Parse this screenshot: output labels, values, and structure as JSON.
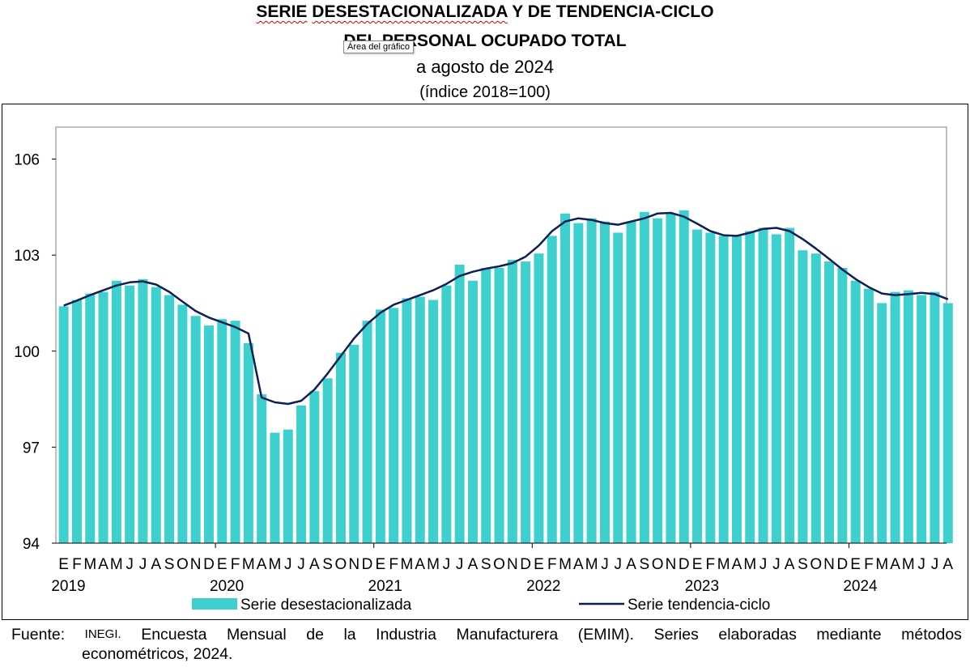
{
  "header": {
    "title_word1": "SERIE",
    "title_word2": "DESESTACIONALIZADA",
    "title_rest": "Y DE TENDENCIA-CICLO",
    "title_line2": "DEL PERSONAL OCUPADO TOTAL",
    "subtitle": "a agosto de 2024",
    "unit": "(índice 2018=100)"
  },
  "tooltip": "Área del gráfico",
  "source": {
    "words": [
      "Fuente:",
      "INEGI.",
      "Encuesta",
      "Mensual",
      "de",
      "la",
      "Industria",
      "Manufacturera",
      "(EMIM).",
      "Series",
      "elaboradas",
      "mediante",
      "métodos"
    ],
    "line2": "econométricos, 2024."
  },
  "colors": {
    "bars": "#3ECFCF",
    "trend": "#0E1F54",
    "axis": "#7F7F7F"
  },
  "chart_data": {
    "type": "bar",
    "ylim": [
      94,
      107
    ],
    "yticks": [
      94,
      97,
      100,
      103,
      106
    ],
    "grid": false,
    "legend_position": "bottom",
    "month_labels": [
      "E",
      "F",
      "M",
      "A",
      "M",
      "J",
      "J",
      "A",
      "S",
      "O",
      "N",
      "D"
    ],
    "years": [
      "2019",
      "2020",
      "2021",
      "2022",
      "2023",
      "2024"
    ],
    "series": [
      {
        "name": "Serie desestacionalizada",
        "type": "bar",
        "values": [
          101.4,
          101.6,
          101.8,
          101.85,
          102.2,
          102.05,
          102.25,
          102.0,
          101.75,
          101.45,
          101.1,
          100.8,
          101.0,
          100.95,
          100.25,
          98.65,
          97.45,
          97.55,
          98.3,
          98.75,
          99.15,
          99.95,
          100.2,
          100.95,
          101.3,
          101.35,
          101.65,
          101.7,
          101.6,
          102.05,
          102.7,
          102.2,
          102.6,
          102.6,
          102.85,
          102.8,
          103.05,
          103.6,
          104.3,
          104.0,
          104.15,
          104.05,
          103.7,
          104.05,
          104.35,
          104.15,
          104.3,
          104.4,
          103.8,
          103.7,
          103.6,
          103.6,
          103.75,
          103.85,
          103.65,
          103.85,
          103.15,
          103.05,
          102.8,
          102.6,
          102.2,
          101.95,
          101.5,
          101.85,
          101.9,
          101.75,
          101.85,
          101.5
        ]
      },
      {
        "name": "Serie tendencia-ciclo",
        "type": "line",
        "values": [
          101.42,
          101.58,
          101.75,
          101.9,
          102.05,
          102.15,
          102.18,
          102.08,
          101.85,
          101.55,
          101.25,
          101.05,
          100.9,
          100.75,
          100.55,
          98.55,
          98.4,
          98.35,
          98.45,
          98.8,
          99.3,
          99.85,
          100.4,
          100.85,
          101.2,
          101.45,
          101.6,
          101.75,
          101.9,
          102.1,
          102.35,
          102.48,
          102.58,
          102.65,
          102.75,
          102.95,
          103.3,
          103.75,
          104.05,
          104.15,
          104.1,
          104.0,
          103.95,
          104.05,
          104.15,
          104.3,
          104.32,
          104.2,
          103.98,
          103.75,
          103.62,
          103.6,
          103.7,
          103.82,
          103.85,
          103.75,
          103.5,
          103.2,
          102.88,
          102.55,
          102.25,
          102.0,
          101.8,
          101.75,
          101.78,
          101.82,
          101.78,
          101.62
        ]
      }
    ]
  }
}
